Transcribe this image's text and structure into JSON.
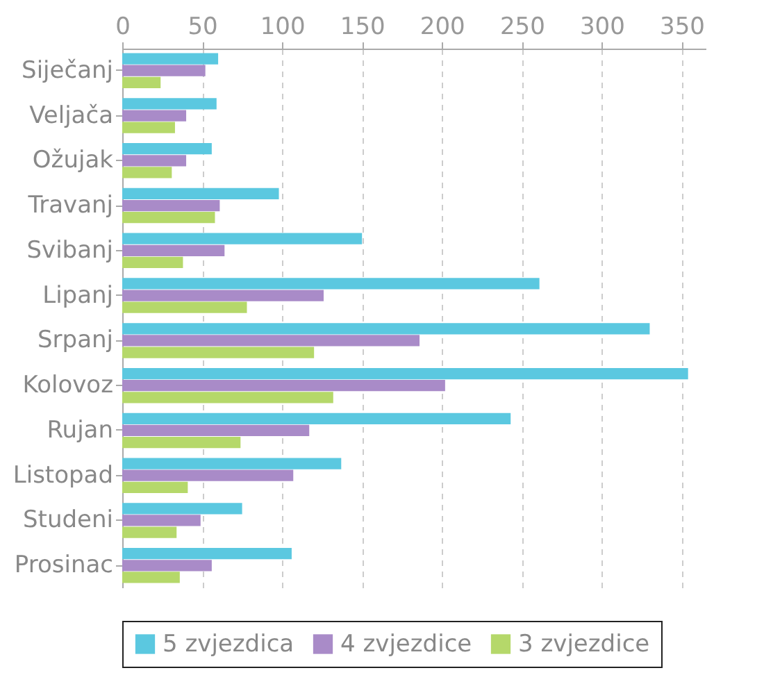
{
  "chart_data": {
    "type": "bar",
    "orientation": "horizontal",
    "categories": [
      "Siječanj",
      "Veljača",
      "Ožujak",
      "Travanj",
      "Svibanj",
      "Lipanj",
      "Srpanj",
      "Kolovoz",
      "Rujan",
      "Listopad",
      "Studeni",
      "Prosinac"
    ],
    "series": [
      {
        "name": "5 zvjezdica",
        "color": "#5bc8e0",
        "values": [
          60,
          59,
          56,
          98,
          150,
          261,
          330,
          354,
          243,
          137,
          75,
          106
        ]
      },
      {
        "name": "4 zvjezdice",
        "color": "#a98bc8",
        "values": [
          52,
          40,
          40,
          61,
          64,
          126,
          186,
          202,
          117,
          107,
          49,
          56
        ]
      },
      {
        "name": "3 zvjezdice",
        "color": "#b5d86a",
        "values": [
          24,
          33,
          31,
          58,
          38,
          78,
          120,
          132,
          74,
          41,
          34,
          36
        ]
      }
    ],
    "xlim": [
      0,
      365
    ],
    "xticks": [
      0,
      50,
      100,
      150,
      200,
      250,
      300,
      350
    ],
    "grid": "x",
    "legend": "bottom"
  }
}
